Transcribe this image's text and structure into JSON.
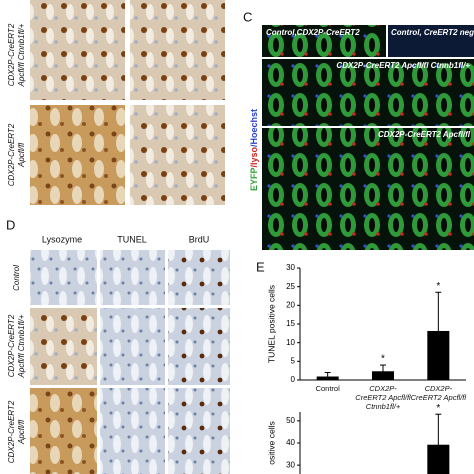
{
  "panel_labels": {
    "c": "C",
    "d": "D",
    "e": "E"
  },
  "panel_a": {
    "rows": [
      {
        "line1": "CDX2P-CreERT2",
        "line2": "Apcfl/fl Ctnnb1fl/+"
      },
      {
        "line1": "CDX2P-CreERT2",
        "line2": "Apcfl/fl"
      }
    ]
  },
  "panel_c": {
    "stain_parts": [
      "EYFP",
      "/lyso",
      "/Hoechst"
    ],
    "image_titles": [
      "Control,CDX2P-CreERT2",
      "Control, CreERT2 neg",
      "CDX2P-CreERT2 Apcfl/fl Ctnnb1fl/+",
      "CDX2P-CreERT2 Apcfl/fl"
    ]
  },
  "panel_d": {
    "columns": [
      "Lysozyme",
      "TUNEL",
      "BrdU"
    ],
    "rows": [
      {
        "line1": "Control"
      },
      {
        "line1": "CDX2P-CreERT2",
        "line2": "Apcfl/fl Ctnnb1fl/+"
      },
      {
        "line1": "CDX2P-CreERT2",
        "line2": "Apcfl/fl"
      }
    ]
  },
  "chart_data": [
    {
      "type": "bar",
      "ylabel": "TUNEL positive cells",
      "categories": [
        "Control",
        "CDX2P-CreERT2 Apcfl/fl Ctnnb1fl/+",
        "CDX2P-CreERT2 Apcfl/fl"
      ],
      "values": [
        0.8,
        2.2,
        13
      ],
      "errors": [
        1.2,
        1.8,
        10.5
      ],
      "significance": [
        null,
        "*",
        "*"
      ],
      "color": "#000000",
      "ylim": [
        0,
        30
      ],
      "yticks": [
        0,
        5,
        10,
        15,
        20,
        25,
        30
      ]
    },
    {
      "type": "bar",
      "ylabel": "ositive cells",
      "values": [
        null,
        null,
        39
      ],
      "errors": [
        null,
        null,
        14
      ],
      "significance": [
        null,
        null,
        "*"
      ],
      "color": "#000000",
      "ylim": [
        26,
        54
      ],
      "yticks": [
        30,
        40,
        50
      ]
    }
  ]
}
